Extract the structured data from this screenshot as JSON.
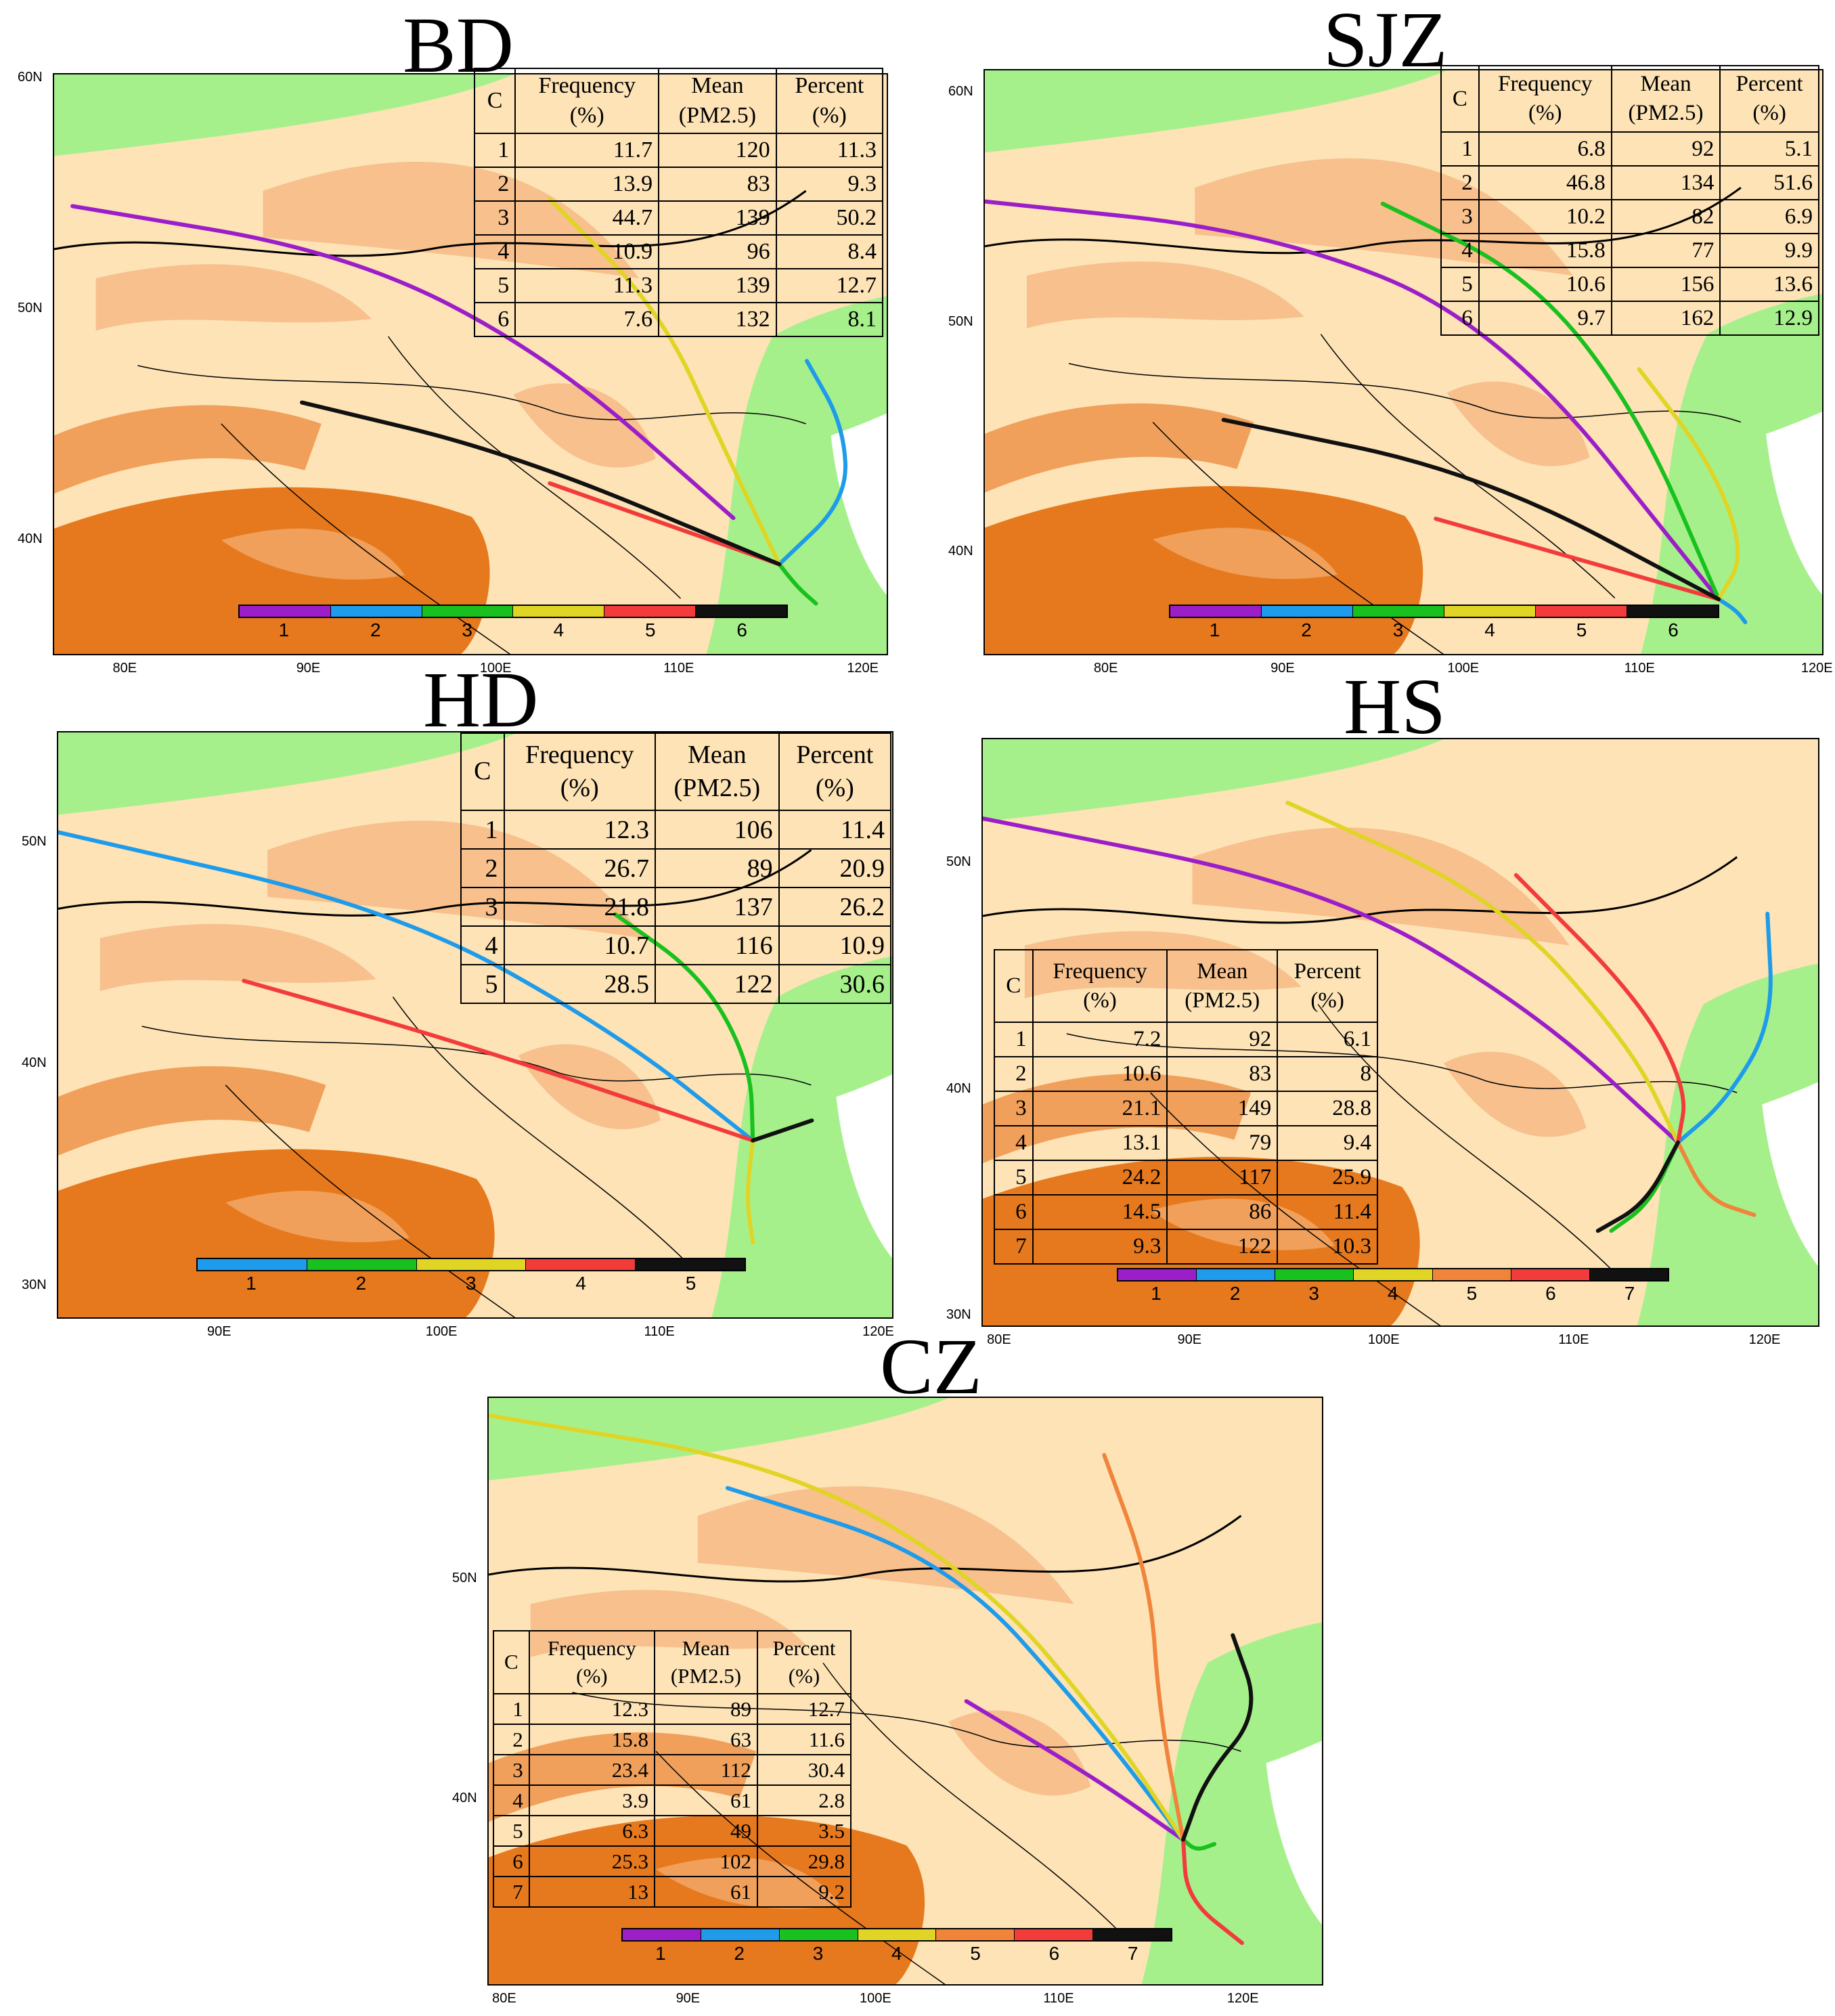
{
  "colors": {
    "terrain_green": "#a6f08c",
    "terrain_light": "#fde3b6",
    "terrain_tan": "#f7c08d",
    "terrain_orange": "#f0a05a",
    "terrain_dark": "#e6791e",
    "cluster": {
      "purple": "#9b1ec8",
      "blue": "#1e9bea",
      "green": "#19c11e",
      "yellow": "#e0d424",
      "orange": "#f0843a",
      "red": "#f23c3c",
      "black": "#111111"
    }
  },
  "panels": [
    {
      "id": "BD",
      "title": "BD",
      "lon_ticks": [
        "80E",
        "90E",
        "100E",
        "110E",
        "120E"
      ],
      "lat_ticks": [
        "60N",
        "50N",
        "40N"
      ],
      "table_headers": [
        "C",
        "Frequency (%)",
        "Mean (PM2.5)",
        "Percent (%)"
      ],
      "rows": [
        [
          "1",
          "11.7",
          "120",
          "11.3"
        ],
        [
          "2",
          "13.9",
          "83",
          "9.3"
        ],
        [
          "3",
          "44.7",
          "139",
          "50.2"
        ],
        [
          "4",
          "10.9",
          "96",
          "8.4"
        ],
        [
          "5",
          "11.3",
          "139",
          "12.7"
        ],
        [
          "6",
          "7.6",
          "132",
          "8.1"
        ]
      ],
      "colorbar": [
        "purple",
        "blue",
        "green",
        "yellow",
        "red",
        "black"
      ],
      "colorbar_labels": [
        "1",
        "2",
        "3",
        "4",
        "5",
        "6"
      ],
      "clusters": [
        {
          "id": "1",
          "color": "purple",
          "path": [
            [
              77,
              54.5
            ],
            [
              92,
              52.5
            ],
            [
              103,
              48
            ],
            [
              113,
              41
            ]
          ]
        },
        {
          "id": "2",
          "color": "blue",
          "path": [
            [
              117,
              47.8
            ],
            [
              119,
              45
            ],
            [
              119.2,
              41.8
            ],
            [
              115.5,
              39
            ]
          ]
        },
        {
          "id": "3",
          "color": "green",
          "path": [
            [
              115.5,
              39
            ],
            [
              116.5,
              38
            ],
            [
              117.5,
              37.3
            ]
          ]
        },
        {
          "id": "4",
          "color": "yellow",
          "path": [
            [
              103,
              54.8
            ],
            [
              109,
              50
            ],
            [
              112.5,
              44
            ],
            [
              115.5,
              39
            ]
          ]
        },
        {
          "id": "5",
          "color": "red",
          "path": [
            [
              103,
              42.5
            ],
            [
              115.5,
              39
            ]
          ]
        },
        {
          "id": "6",
          "color": "black",
          "path": [
            [
              89.5,
              46
            ],
            [
              101,
              43.8
            ],
            [
              115.5,
              39
            ]
          ]
        }
      ]
    },
    {
      "id": "SJZ",
      "title": "SJZ",
      "lon_ticks": [
        "80E",
        "90E",
        "100E",
        "110E",
        "120E"
      ],
      "lat_ticks": [
        "60N",
        "50N",
        "40N"
      ],
      "table_headers": [
        "C",
        "Frequency (%)",
        "Mean (PM2.5)",
        "Percent (%)"
      ],
      "rows": [
        [
          "1",
          "6.8",
          "92",
          "5.1"
        ],
        [
          "2",
          "46.8",
          "134",
          "51.6"
        ],
        [
          "3",
          "10.2",
          "82",
          "6.9"
        ],
        [
          "4",
          "15.8",
          "77",
          "9.9"
        ],
        [
          "5",
          "10.6",
          "156",
          "13.6"
        ],
        [
          "6",
          "9.7",
          "162",
          "12.9"
        ]
      ],
      "colorbar": [
        "purple",
        "blue",
        "green",
        "yellow",
        "red",
        "black"
      ],
      "colorbar_labels": [
        "1",
        "2",
        "3",
        "4",
        "5",
        "6"
      ],
      "clusters": [
        {
          "id": "1",
          "color": "purple",
          "path": [
            [
              73,
              55.3
            ],
            [
              89,
              54
            ],
            [
              102,
              50
            ],
            [
              114.5,
              38
            ]
          ]
        },
        {
          "id": "2",
          "color": "blue",
          "path": [
            [
              114.5,
              38
            ],
            [
              115.5,
              37.5
            ],
            [
              116,
              37
            ]
          ]
        },
        {
          "id": "3",
          "color": "green",
          "path": [
            [
              95.5,
              55.2
            ],
            [
              104,
              52
            ],
            [
              110,
              46
            ],
            [
              114.5,
              38
            ]
          ]
        },
        {
          "id": "4",
          "color": "yellow",
          "path": [
            [
              110,
              48
            ],
            [
              114,
              44
            ],
            [
              116,
              40
            ],
            [
              114.5,
              38
            ]
          ]
        },
        {
          "id": "5",
          "color": "red",
          "path": [
            [
              98.5,
              41.5
            ],
            [
              114.5,
              38
            ]
          ]
        },
        {
          "id": "6",
          "color": "black",
          "path": [
            [
              86.5,
              45.8
            ],
            [
              101,
              43.5
            ],
            [
              114.5,
              38
            ]
          ]
        }
      ]
    },
    {
      "id": "HD",
      "title": "HD",
      "lon_ticks": [
        "90E",
        "100E",
        "110E",
        "120E"
      ],
      "lat_ticks": [
        "50N",
        "40N",
        "30N"
      ],
      "table_headers": [
        "C",
        "Frequency (%)",
        "Mean (PM2.5)",
        "Percent (%)"
      ],
      "rows": [
        [
          "1",
          "12.3",
          "106",
          "11.4"
        ],
        [
          "2",
          "26.7",
          "89",
          "20.9"
        ],
        [
          "3",
          "21.8",
          "137",
          "26.2"
        ],
        [
          "4",
          "10.7",
          "116",
          "10.9"
        ],
        [
          "5",
          "28.5",
          "122",
          "30.6"
        ]
      ],
      "colorbar": [
        "blue",
        "green",
        "yellow",
        "red",
        "black"
      ],
      "colorbar_labels": [
        "1",
        "2",
        "3",
        "4",
        "5"
      ],
      "clusters": [
        {
          "id": "1",
          "color": "blue",
          "path": [
            [
              82.5,
              50.5
            ],
            [
              98,
              47
            ],
            [
              108,
              41.5
            ],
            [
              114.3,
              36.6
            ]
          ]
        },
        {
          "id": "2",
          "color": "green",
          "path": [
            [
              108,
              46.8
            ],
            [
              112,
              44
            ],
            [
              114.2,
              40
            ],
            [
              114.3,
              36.6
            ]
          ]
        },
        {
          "id": "3",
          "color": "yellow",
          "path": [
            [
              114.3,
              36.6
            ],
            [
              114,
              34
            ],
            [
              114.3,
              32
            ]
          ]
        },
        {
          "id": "4",
          "color": "red",
          "path": [
            [
              91,
              43.8
            ],
            [
              101,
              41
            ],
            [
              114.3,
              36.6
            ]
          ]
        },
        {
          "id": "5",
          "color": "black",
          "path": [
            [
              114.3,
              36.6
            ],
            [
              117,
              37.5
            ]
          ]
        }
      ]
    },
    {
      "id": "HS",
      "title": "HS",
      "lon_ticks": [
        "80E",
        "90E",
        "100E",
        "110E",
        "120E"
      ],
      "lat_ticks": [
        "50N",
        "40N",
        "30N"
      ],
      "table_headers": [
        "C",
        "Frequency (%)",
        "Mean (PM2.5)",
        "Percent (%)"
      ],
      "rows": [
        [
          "1",
          "7.2",
          "92",
          "6.1"
        ],
        [
          "2",
          "10.6",
          "83",
          "8"
        ],
        [
          "3",
          "21.1",
          "149",
          "28.8"
        ],
        [
          "4",
          "13.1",
          "79",
          "9.4"
        ],
        [
          "5",
          "24.2",
          "117",
          "25.9"
        ],
        [
          "6",
          "14.5",
          "86",
          "11.4"
        ],
        [
          "7",
          "9.3",
          "122",
          "10.3"
        ]
      ],
      "colorbar": [
        "purple",
        "blue",
        "green",
        "yellow",
        "orange",
        "red",
        "black"
      ],
      "colorbar_labels": [
        "1",
        "2",
        "3",
        "4",
        "5",
        "6",
        "7"
      ],
      "clusters": [
        {
          "id": "1",
          "color": "purple",
          "path": [
            [
              79,
              52
            ],
            [
              97,
              49
            ],
            [
              108,
              43.5
            ],
            [
              115.5,
              37.7
            ]
          ]
        },
        {
          "id": "2",
          "color": "blue",
          "path": [
            [
              120.2,
              47.8
            ],
            [
              120.5,
              43
            ],
            [
              118,
              39.5
            ],
            [
              115.5,
              37.7
            ]
          ]
        },
        {
          "id": "3",
          "color": "green",
          "path": [
            [
              115.5,
              37.7
            ],
            [
              114,
              35
            ],
            [
              112,
              33.8
            ]
          ]
        },
        {
          "id": "4",
          "color": "yellow",
          "path": [
            [
              95,
              52.7
            ],
            [
              106,
              48.5
            ],
            [
              113,
              42
            ],
            [
              115.5,
              37.7
            ]
          ]
        },
        {
          "id": "5",
          "color": "orange",
          "path": [
            [
              115.5,
              37.7
            ],
            [
              117,
              35.2
            ],
            [
              119.5,
              34.5
            ]
          ]
        },
        {
          "id": "6",
          "color": "red",
          "path": [
            [
              107,
              49.5
            ],
            [
              113.5,
              44
            ],
            [
              116,
              40
            ],
            [
              115.5,
              37.7
            ]
          ]
        },
        {
          "id": "7",
          "color": "black",
          "path": [
            [
              115.5,
              37.7
            ],
            [
              113.8,
              35
            ],
            [
              111.3,
              33.8
            ]
          ]
        }
      ]
    },
    {
      "id": "CZ",
      "title": "CZ",
      "lon_ticks": [
        "80E",
        "90E",
        "100E",
        "110E",
        "120E"
      ],
      "lat_ticks": [
        "50N",
        "40N"
      ],
      "table_headers": [
        "C",
        "Frequency (%)",
        "Mean (PM2.5)",
        "Percent (%)"
      ],
      "rows": [
        [
          "1",
          "12.3",
          "89",
          "12.7"
        ],
        [
          "2",
          "15.8",
          "63",
          "11.6"
        ],
        [
          "3",
          "23.4",
          "112",
          "30.4"
        ],
        [
          "4",
          "3.9",
          "61",
          "2.8"
        ],
        [
          "5",
          "6.3",
          "49",
          "3.5"
        ],
        [
          "6",
          "25.3",
          "102",
          "29.8"
        ],
        [
          "7",
          "13",
          "61",
          "9.2"
        ]
      ],
      "colorbar": [
        "purple",
        "blue",
        "green",
        "yellow",
        "orange",
        "red",
        "black"
      ],
      "colorbar_labels": [
        "1",
        "2",
        "3",
        "4",
        "5",
        "6",
        "7"
      ],
      "clusters": [
        {
          "id": "1",
          "color": "purple",
          "path": [
            [
              105,
              44.5
            ],
            [
              112,
              41
            ],
            [
              116.8,
              38.2
            ]
          ]
        },
        {
          "id": "2",
          "color": "blue",
          "path": [
            [
              92,
              54.2
            ],
            [
              104,
              51
            ],
            [
              112,
              43.5
            ],
            [
              116.8,
              38.2
            ]
          ]
        },
        {
          "id": "3",
          "color": "green",
          "path": [
            [
              116.8,
              38.2
            ],
            [
              117.5,
              37.7
            ],
            [
              118.5,
              38
            ]
          ]
        },
        {
          "id": "4",
          "color": "yellow",
          "path": [
            [
              79,
              57.5
            ],
            [
              95,
              55.3
            ],
            [
              106,
              50
            ],
            [
              113,
              43
            ],
            [
              116.8,
              38.2
            ]
          ]
        },
        {
          "id": "5",
          "color": "orange",
          "path": [
            [
              112.5,
              55.7
            ],
            [
              115,
              50
            ],
            [
              115.5,
              44
            ],
            [
              116.8,
              38.2
            ]
          ]
        },
        {
          "id": "6",
          "color": "red",
          "path": [
            [
              116.8,
              38.2
            ],
            [
              117,
              35.5
            ],
            [
              120,
              33.5
            ]
          ]
        },
        {
          "id": "7",
          "color": "black",
          "path": [
            [
              116.8,
              38.2
            ],
            [
              118,
              41
            ],
            [
              121,
              44
            ],
            [
              119.5,
              47.5
            ]
          ]
        }
      ]
    }
  ]
}
